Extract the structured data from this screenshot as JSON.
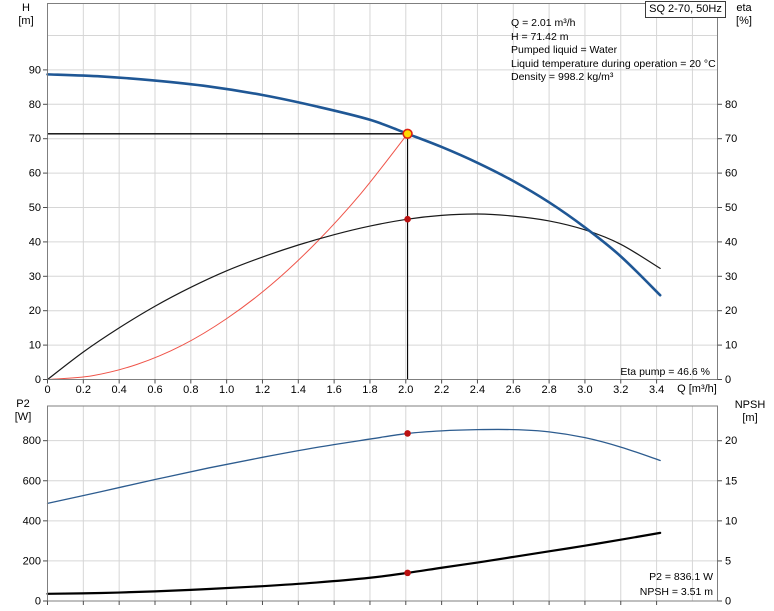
{
  "header": {
    "model": "SQ 2-70, 50Hz"
  },
  "info_block": [
    "Q = 2.01 m³/h",
    "H = 71.42 m",
    "Pumped liquid = Water",
    "Liquid temperature during operation = 20 °C",
    "Density = 998.2 kg/m³"
  ],
  "colors": {
    "background": "#ffffff",
    "grid": "#d6d6d6",
    "frame": "#7f7f7f",
    "tick": "#4d4d4d",
    "text": "#000000",
    "head_curve": "#1f5795",
    "eta_curve": "#1a1a1a",
    "system_curve": "#ef5449",
    "p2_curve": "#2d5c8f",
    "npsh_curve": "#000000",
    "marker_red": "#bb1111",
    "duty_fill": "#ffd900",
    "duty_stroke": "#dd2211",
    "duty_line": "#000000"
  },
  "chart_data": [
    {
      "id": "head-efficiency-chart",
      "type": "line",
      "title": "SQ 2-70, 50Hz",
      "x_axis": {
        "label": "Q [m³/h]",
        "min": 0,
        "max": 3.74,
        "grid_step": 0.2,
        "ticks": [
          0,
          0.2,
          0.4,
          0.6,
          0.8,
          1.0,
          1.2,
          1.4,
          1.6,
          1.8,
          2.0,
          2.2,
          2.4,
          2.6,
          2.8,
          3.0,
          3.2,
          3.4
        ]
      },
      "y_left": {
        "label_lines": [
          "H",
          "[m]"
        ],
        "min": 0,
        "max": 109.3,
        "grid_step": 10,
        "ticks": [
          0,
          10,
          20,
          30,
          40,
          50,
          60,
          70,
          80,
          90
        ]
      },
      "y_right": {
        "label_lines": [
          "eta",
          "[%]"
        ],
        "min": 0,
        "max": 109.3,
        "ticks": [
          0,
          10,
          20,
          30,
          40,
          50,
          60,
          70,
          80
        ]
      },
      "show_x_tick_labels": true,
      "series": [
        {
          "name": "system-curve",
          "axis": "left",
          "color_key": "system_curve",
          "width": 1,
          "points": [
            [
              0,
              0
            ],
            [
              0.25,
              1.1
            ],
            [
              0.5,
              4.4
            ],
            [
              0.75,
              9.9
            ],
            [
              1.0,
              17.7
            ],
            [
              1.25,
              27.6
            ],
            [
              1.5,
              39.8
            ],
            [
              1.75,
              54.1
            ],
            [
              2.01,
              71.42
            ]
          ]
        },
        {
          "name": "eta-curve",
          "axis": "right",
          "color_key": "eta_curve",
          "width": 1.2,
          "points": [
            [
              0,
              0
            ],
            [
              0.2,
              8
            ],
            [
              0.4,
              15
            ],
            [
              0.6,
              21.3
            ],
            [
              0.8,
              26.8
            ],
            [
              1.0,
              31.6
            ],
            [
              1.2,
              35.6
            ],
            [
              1.4,
              39.1
            ],
            [
              1.6,
              42.1
            ],
            [
              1.8,
              44.6
            ],
            [
              2.01,
              46.6
            ],
            [
              2.2,
              47.7
            ],
            [
              2.4,
              48.1
            ],
            [
              2.6,
              47.5
            ],
            [
              2.8,
              46.1
            ],
            [
              3.0,
              43.5
            ],
            [
              3.2,
              39.3
            ],
            [
              3.42,
              32.3
            ]
          ]
        },
        {
          "name": "head-curve",
          "axis": "left",
          "color_key": "head_curve",
          "width": 2.6,
          "points": [
            [
              0,
              88.7
            ],
            [
              0.3,
              88.1
            ],
            [
              0.6,
              86.9
            ],
            [
              0.9,
              85.2
            ],
            [
              1.2,
              82.7
            ],
            [
              1.5,
              79.4
            ],
            [
              1.8,
              75.5
            ],
            [
              2.01,
              71.42
            ],
            [
              2.2,
              67.6
            ],
            [
              2.4,
              63.0
            ],
            [
              2.6,
              57.7
            ],
            [
              2.8,
              51.5
            ],
            [
              3.0,
              44.2
            ],
            [
              3.2,
              35.8
            ],
            [
              3.42,
              24.5
            ]
          ]
        }
      ],
      "duty_point": {
        "q": 2.01,
        "value": 71.42,
        "axis": "left"
      },
      "markers": [
        {
          "name": "eta-operating-marker",
          "q": 2.01,
          "value": 46.6,
          "axis": "right"
        }
      ],
      "annotation": "Eta pump = 46.6 %"
    },
    {
      "id": "power-npsh-chart",
      "type": "line",
      "x_axis": {
        "label": "",
        "min": 0,
        "max": 3.74,
        "grid_step": 0.2,
        "ticks": [
          0,
          0.2,
          0.4,
          0.6,
          0.8,
          1.0,
          1.2,
          1.4,
          1.6,
          1.8,
          2.0,
          2.2,
          2.4,
          2.6,
          2.8,
          3.0,
          3.2,
          3.4
        ]
      },
      "y_left": {
        "label_lines": [
          "P2",
          "[W]"
        ],
        "min": 0,
        "max": 973,
        "grid_step": 200,
        "ticks": [
          0,
          200,
          400,
          600,
          800
        ]
      },
      "y_right": {
        "label_lines": [
          "NPSH",
          "[m]"
        ],
        "min": 0,
        "max": 24.33,
        "ticks": [
          0,
          5,
          10,
          15,
          20
        ]
      },
      "show_x_tick_labels": false,
      "series": [
        {
          "name": "p2-curve",
          "axis": "left",
          "color_key": "p2_curve",
          "width": 1.3,
          "points": [
            [
              0,
              487
            ],
            [
              0.3,
              546
            ],
            [
              0.6,
              606
            ],
            [
              0.9,
              664
            ],
            [
              1.2,
              717
            ],
            [
              1.5,
              766
            ],
            [
              1.8,
              808
            ],
            [
              2.01,
              836.1
            ],
            [
              2.2,
              849
            ],
            [
              2.4,
              855
            ],
            [
              2.6,
              855
            ],
            [
              2.8,
              844
            ],
            [
              3.0,
              815
            ],
            [
              3.2,
              768
            ],
            [
              3.42,
              701
            ]
          ]
        },
        {
          "name": "npsh-curve",
          "axis": "right",
          "color_key": "npsh_curve",
          "width": 2.2,
          "points": [
            [
              0,
              0.9
            ],
            [
              0.3,
              1.0
            ],
            [
              0.6,
              1.2
            ],
            [
              0.9,
              1.5
            ],
            [
              1.2,
              1.85
            ],
            [
              1.5,
              2.3
            ],
            [
              1.8,
              2.9
            ],
            [
              2.01,
              3.51
            ],
            [
              2.2,
              4.15
            ],
            [
              2.4,
              4.8
            ],
            [
              2.6,
              5.5
            ],
            [
              2.8,
              6.2
            ],
            [
              3.0,
              6.9
            ],
            [
              3.2,
              7.65
            ],
            [
              3.42,
              8.5
            ]
          ]
        }
      ],
      "markers": [
        {
          "name": "p2-operating-marker",
          "q": 2.01,
          "value": 836.1,
          "axis": "left"
        },
        {
          "name": "npsh-operating-marker",
          "q": 2.01,
          "value": 3.51,
          "axis": "right"
        }
      ],
      "annotations": [
        "P2 = 836.1 W",
        "NPSH = 3.51 m"
      ]
    }
  ]
}
